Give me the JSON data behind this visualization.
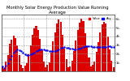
{
  "title": "Monthly Solar Energy Production Value Running Average",
  "bar_color": "#dd0000",
  "avg_color": "#0000ee",
  "background": "#ffffff",
  "grid_color": "#999999",
  "ylim": [
    0,
    650
  ],
  "yticks": [
    100,
    200,
    300,
    400,
    500,
    600
  ],
  "ytick_labels": [
    "1k.",
    "2k.",
    "3k.",
    "4k.",
    "5k.",
    "6k."
  ],
  "values": [
    55,
    25,
    110,
    190,
    320,
    360,
    410,
    380,
    300,
    190,
    75,
    35,
    65,
    95,
    195,
    300,
    420,
    490,
    520,
    470,
    370,
    240,
    115,
    45,
    75,
    105,
    215,
    340,
    450,
    550,
    590,
    570,
    420,
    260,
    135,
    50,
    60,
    125,
    235,
    350,
    470,
    560,
    600,
    580,
    440,
    290,
    155,
    55,
    70,
    115,
    225,
    330,
    450,
    540,
    570,
    550,
    400,
    250,
    125,
    50
  ],
  "running_avg": [
    55,
    40,
    63,
    95,
    140,
    177,
    210,
    231,
    247,
    243,
    228,
    209,
    197,
    189,
    187,
    191,
    201,
    215,
    230,
    243,
    250,
    253,
    251,
    245,
    238,
    232,
    229,
    231,
    235,
    244,
    254,
    265,
    272,
    274,
    273,
    269,
    264,
    258,
    254,
    254,
    256,
    260,
    267,
    276,
    284,
    286,
    286,
    284,
    281,
    278,
    276,
    275,
    275,
    278,
    280,
    282,
    284,
    284,
    283,
    281
  ],
  "num_bars": 60,
  "title_fontsize": 3.8,
  "tick_fontsize": 2.8,
  "legend_fontsize": 2.5
}
